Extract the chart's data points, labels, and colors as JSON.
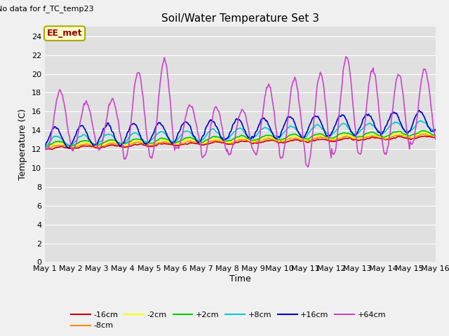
{
  "title": "Soil/Water Temperature Set 3",
  "xlabel": "Time",
  "ylabel": "Temperature (C)",
  "top_left_text": "No data for f_TC_temp23",
  "legend_label_text": "EE_met",
  "ylim": [
    0,
    25
  ],
  "yticks": [
    0,
    2,
    4,
    6,
    8,
    10,
    12,
    14,
    16,
    18,
    20,
    22,
    24
  ],
  "xlim": [
    0,
    15
  ],
  "xtick_labels": [
    "May 1",
    "May 2",
    "May 3",
    "May 4",
    "May 5",
    "May 6",
    "May 7",
    "May 8",
    "May 9",
    "May 10",
    "May 11",
    "May 12",
    "May 13",
    "May 14",
    "May 15",
    "May 16"
  ],
  "fig_bg_color": "#f0f0f0",
  "plot_bg_color": "#e0e0e0",
  "grid_color": "#ffffff",
  "series_order": [
    "-16cm",
    "-8cm",
    "-2cm",
    "+2cm",
    "+8cm",
    "+16cm",
    "+64cm"
  ],
  "series": {
    "-16cm": {
      "color": "#cc0000"
    },
    "-8cm": {
      "color": "#ff8800"
    },
    "-2cm": {
      "color": "#ffff00"
    },
    "+2cm": {
      "color": "#00cc00"
    },
    "+8cm": {
      "color": "#00cccc"
    },
    "+16cm": {
      "color": "#0000cc"
    },
    "+64cm": {
      "color": "#cc44cc"
    }
  },
  "legend_box_color": "#ffffcc",
  "legend_box_edge": "#aaaa00"
}
